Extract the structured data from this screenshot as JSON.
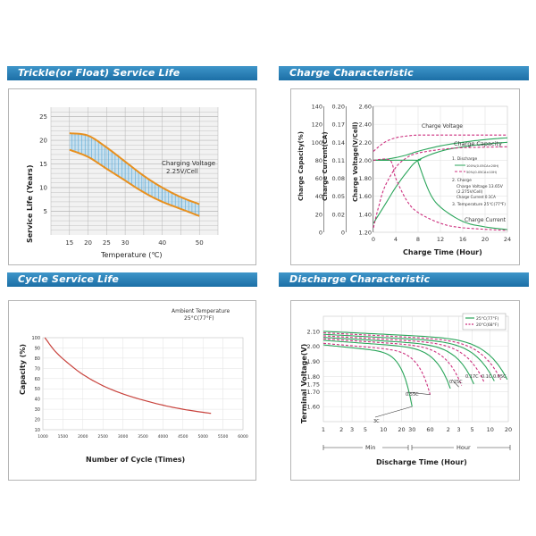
{
  "colors": {
    "header": "#2a80b9",
    "orange": "#e8901e",
    "blue": "#5aaad8",
    "green": "#2aa55a",
    "magenta": "#cc2f7e",
    "red": "#c8423c",
    "grid": "#b5b5b5",
    "plot_bg": "#f2f2f2"
  },
  "headers": {
    "trickle": "Trickle(or Float) Service Life",
    "charge": "Charge Characteristic",
    "cycle": "Cycle Service Life",
    "discharge": "Discharge Characteristic"
  },
  "chart_data": [
    {
      "id": "trickle",
      "type": "area",
      "title": "Trickle(or Float) Service Life",
      "xlabel": "Temperature (℃)",
      "ylabel": "Service Life (Years)",
      "xlim": [
        10,
        55
      ],
      "ylim": [
        0,
        27
      ],
      "xticks": [
        "15",
        "20",
        "25",
        "30",
        "40",
        "50"
      ],
      "yticks": [
        "25",
        "20",
        "15",
        "10",
        "5"
      ],
      "annotation_line1": "Charging Voltage",
      "annotation_line2": "2.25V/Cell",
      "series": [
        {
          "name": "upper",
          "x": [
            15,
            20,
            25,
            30,
            35,
            40,
            45,
            50
          ],
          "y": [
            21.5,
            21,
            18.5,
            15.5,
            12.5,
            10,
            8,
            6.5
          ]
        },
        {
          "name": "lower",
          "x": [
            15,
            20,
            25,
            30,
            35,
            40,
            45,
            50
          ],
          "y": [
            18,
            16.5,
            14,
            11.5,
            9,
            7,
            5.5,
            4
          ]
        }
      ]
    },
    {
      "id": "charge",
      "type": "line",
      "title": "Charge Characteristic",
      "xlabel": "Charge Time (Hour)",
      "xlim": [
        0,
        24
      ],
      "xticks": [
        "0",
        "4",
        "8",
        "12",
        "16",
        "20",
        "24"
      ],
      "axis1": {
        "label": "Charge Capacity(%)",
        "ticks": [
          "140",
          "120",
          "100",
          "80",
          "60",
          "40",
          "20",
          "0"
        ]
      },
      "axis2": {
        "label": "Charge Current(CA)",
        "ticks": [
          "0.20",
          "0.17",
          "0.14",
          "0.11",
          "0.08",
          "0.05",
          "0.02",
          "0"
        ]
      },
      "axis3": {
        "label": "Charge Voltage(V/Cell)",
        "ticks": [
          "2.60",
          "2.40",
          "2.20",
          "2.00",
          "1.80",
          "1.60",
          "1.40",
          "1.20"
        ],
        "ylim": [
          1.2,
          2.6
        ]
      },
      "labels": {
        "voltage": "Charge Voltage",
        "capacity": "Charge Capacity",
        "current": "Charge Current"
      },
      "notes": {
        "n1": "1.  Discharge",
        "n1a": "100%(0.05CA×20H)",
        "n1b": "50%(0.05CA×10H)",
        "n2": "2.  Charge",
        "n2a": "Charge Voltage 13.65V",
        "n2b": "(2.275V/Cell)",
        "n2c": "Charge Current 0.1CA",
        "n3": "3.  Temperature 25℃(77℉)"
      },
      "series": [
        {
          "name": "Charge Voltage 100%",
          "x": [
            0,
            2,
            4,
            6,
            8,
            12,
            16,
            20,
            24
          ],
          "y": [
            2.0,
            2.01,
            2.03,
            2.06,
            2.1,
            2.16,
            2.2,
            2.23,
            2.25
          ]
        },
        {
          "name": "Charge Voltage 50%",
          "x": [
            0,
            2,
            4,
            6,
            8,
            12,
            16,
            20,
            24
          ],
          "y": [
            2.1,
            2.2,
            2.25,
            2.27,
            2.28,
            2.28,
            2.28,
            2.28,
            2.28
          ]
        },
        {
          "name": "Charge Capacity 100%",
          "x": [
            0,
            2,
            4,
            6,
            8,
            12,
            16,
            20,
            24
          ],
          "y": [
            1.3,
            1.5,
            1.7,
            1.87,
            2.0,
            2.1,
            2.15,
            2.18,
            2.2
          ]
        },
        {
          "name": "Charge Capacity 50%",
          "x": [
            0,
            1,
            2,
            4,
            6,
            8,
            12,
            16,
            24
          ],
          "y": [
            1.25,
            1.5,
            1.7,
            1.92,
            2.03,
            2.08,
            2.12,
            2.14,
            2.15
          ]
        },
        {
          "name": "Charge Current 100%",
          "x": [
            0,
            7.9,
            8,
            10,
            12,
            16,
            20,
            24
          ],
          "y": [
            2.0,
            2.0,
            1.98,
            1.65,
            1.48,
            1.32,
            1.26,
            1.23
          ]
        },
        {
          "name": "Charge Current 50%",
          "x": [
            0,
            3,
            4,
            6,
            8,
            12,
            16,
            24
          ],
          "y": [
            2.0,
            2.0,
            1.8,
            1.55,
            1.42,
            1.3,
            1.25,
            1.22
          ]
        }
      ]
    },
    {
      "id": "cycle",
      "type": "line",
      "title": "Cycle Service Life",
      "xlabel": "Number of Cycle (Times)",
      "ylabel": "Capacity (%)",
      "xlim": [
        1000,
        6000
      ],
      "ylim": [
        10,
        100
      ],
      "xticks": [
        "1000",
        "1500",
        "2000",
        "2500",
        "3000",
        "3500",
        "4000",
        "4500",
        "5000",
        "5500",
        "6000"
      ],
      "yticks": [
        "100",
        "90",
        "80",
        "70",
        "60",
        "50",
        "40",
        "30",
        "20",
        "10"
      ],
      "annotation_line1": "Ambient Temperature",
      "annotation_line2": "25°C(77°F)",
      "series": [
        {
          "name": "capacity",
          "x": [
            1050,
            1300,
            1600,
            2000,
            2500,
            3000,
            3500,
            4000,
            4500,
            5000,
            5200
          ],
          "y": [
            100,
            87,
            76,
            64,
            53,
            45,
            39,
            34,
            30,
            27,
            26
          ]
        }
      ]
    },
    {
      "id": "discharge",
      "type": "line",
      "title": "Discharge Characteristic",
      "ylabel": "Terminal Voltage(V)",
      "xlabel": "Discharge Time (Hour)",
      "yticks": [
        "2.10",
        "2.00",
        "1.90",
        "1.80",
        "1.75",
        "1.70",
        "1.60"
      ],
      "xticks": [
        "1",
        "2",
        "3",
        "5",
        "10",
        "20",
        "30",
        "60",
        "2",
        "3",
        "5",
        "10",
        "20"
      ],
      "unit_min": "Min",
      "unit_hour": "Hour",
      "legend": [
        "25°C(77°F)",
        "20°C(68°F)"
      ],
      "rate_labels": [
        "3C",
        "0.55C",
        "0.25C",
        "0.17C",
        "0.1C",
        "0.05C"
      ]
    }
  ]
}
